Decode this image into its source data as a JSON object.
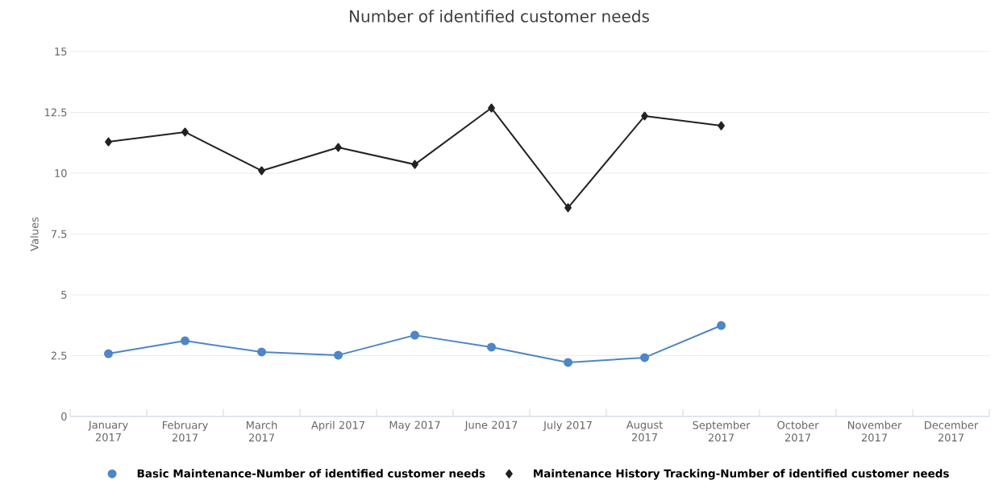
{
  "chart_data": {
    "type": "line",
    "title": "Number of identified customer needs",
    "ylabel": "Values",
    "categories": [
      "January 2017",
      "February 2017",
      "March 2017",
      "April 2017",
      "May 2017",
      "June 2017",
      "July 2017",
      "August 2017",
      "September 2017",
      "October 2017",
      "November 2017",
      "December 2017"
    ],
    "series": [
      {
        "name": "Basic Maintenance-Number of identified customer needs",
        "color": "#4f86c6",
        "marker": "circle",
        "values": [
          2.58,
          3.11,
          2.65,
          2.52,
          3.34,
          2.85,
          2.22,
          2.42,
          3.74,
          null,
          null,
          null
        ]
      },
      {
        "name": "Maintenance History Tracking-Number of identified customer needs",
        "color": "#222222",
        "marker": "diamond",
        "values": [
          11.29,
          11.69,
          10.1,
          11.06,
          10.36,
          12.68,
          8.58,
          12.35,
          11.95,
          null,
          null,
          null
        ]
      }
    ],
    "ylim": [
      0,
      15
    ],
    "yticks": [
      0,
      2.5,
      5,
      7.5,
      10,
      12.5,
      15
    ],
    "grid": "y",
    "legend": "bottom",
    "line_style": "solid"
  }
}
